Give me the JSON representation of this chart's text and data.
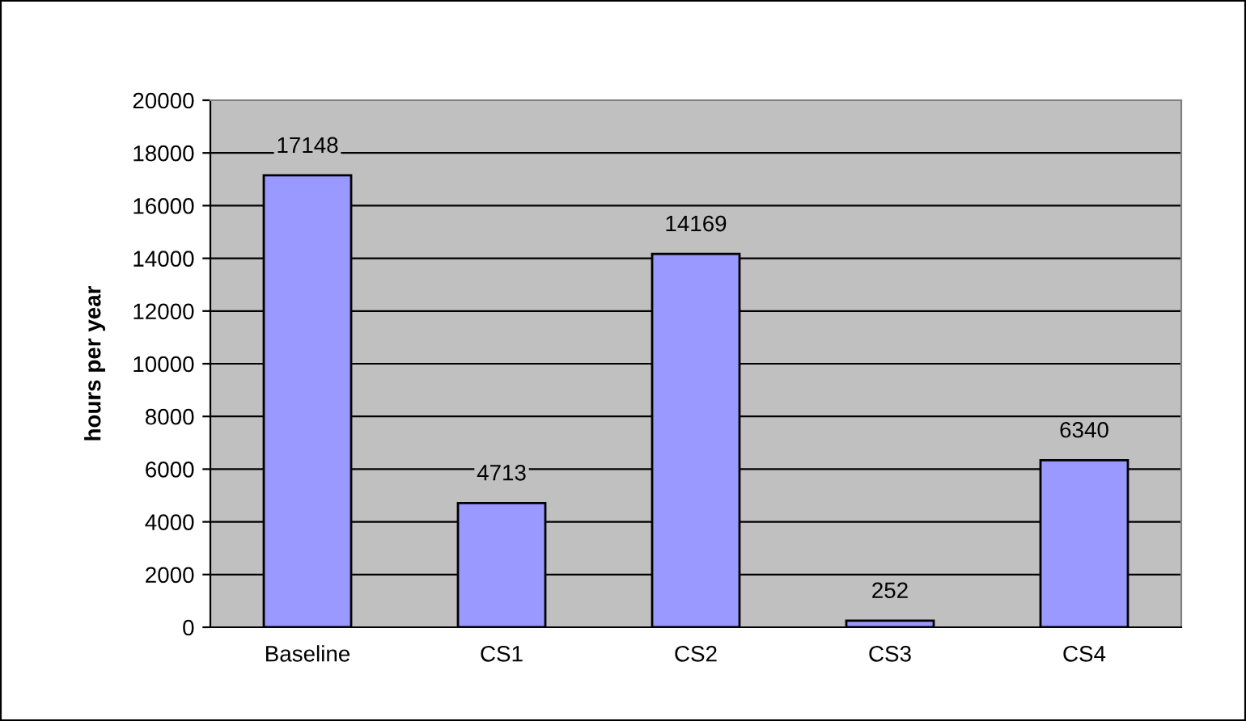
{
  "chart_data": {
    "type": "bar",
    "ylabel": "hours per year",
    "categories": [
      "Baseline",
      "CS1",
      "CS2",
      "CS3",
      "CS4"
    ],
    "values": [
      17148,
      4713,
      14169,
      252,
      6340
    ],
    "color": "#9999ff",
    "ylim": [
      0,
      20000
    ],
    "yticks": [
      0,
      2000,
      4000,
      6000,
      8000,
      10000,
      12000,
      14000,
      16000,
      18000,
      20000
    ],
    "grid": "y",
    "data_labels": true
  }
}
